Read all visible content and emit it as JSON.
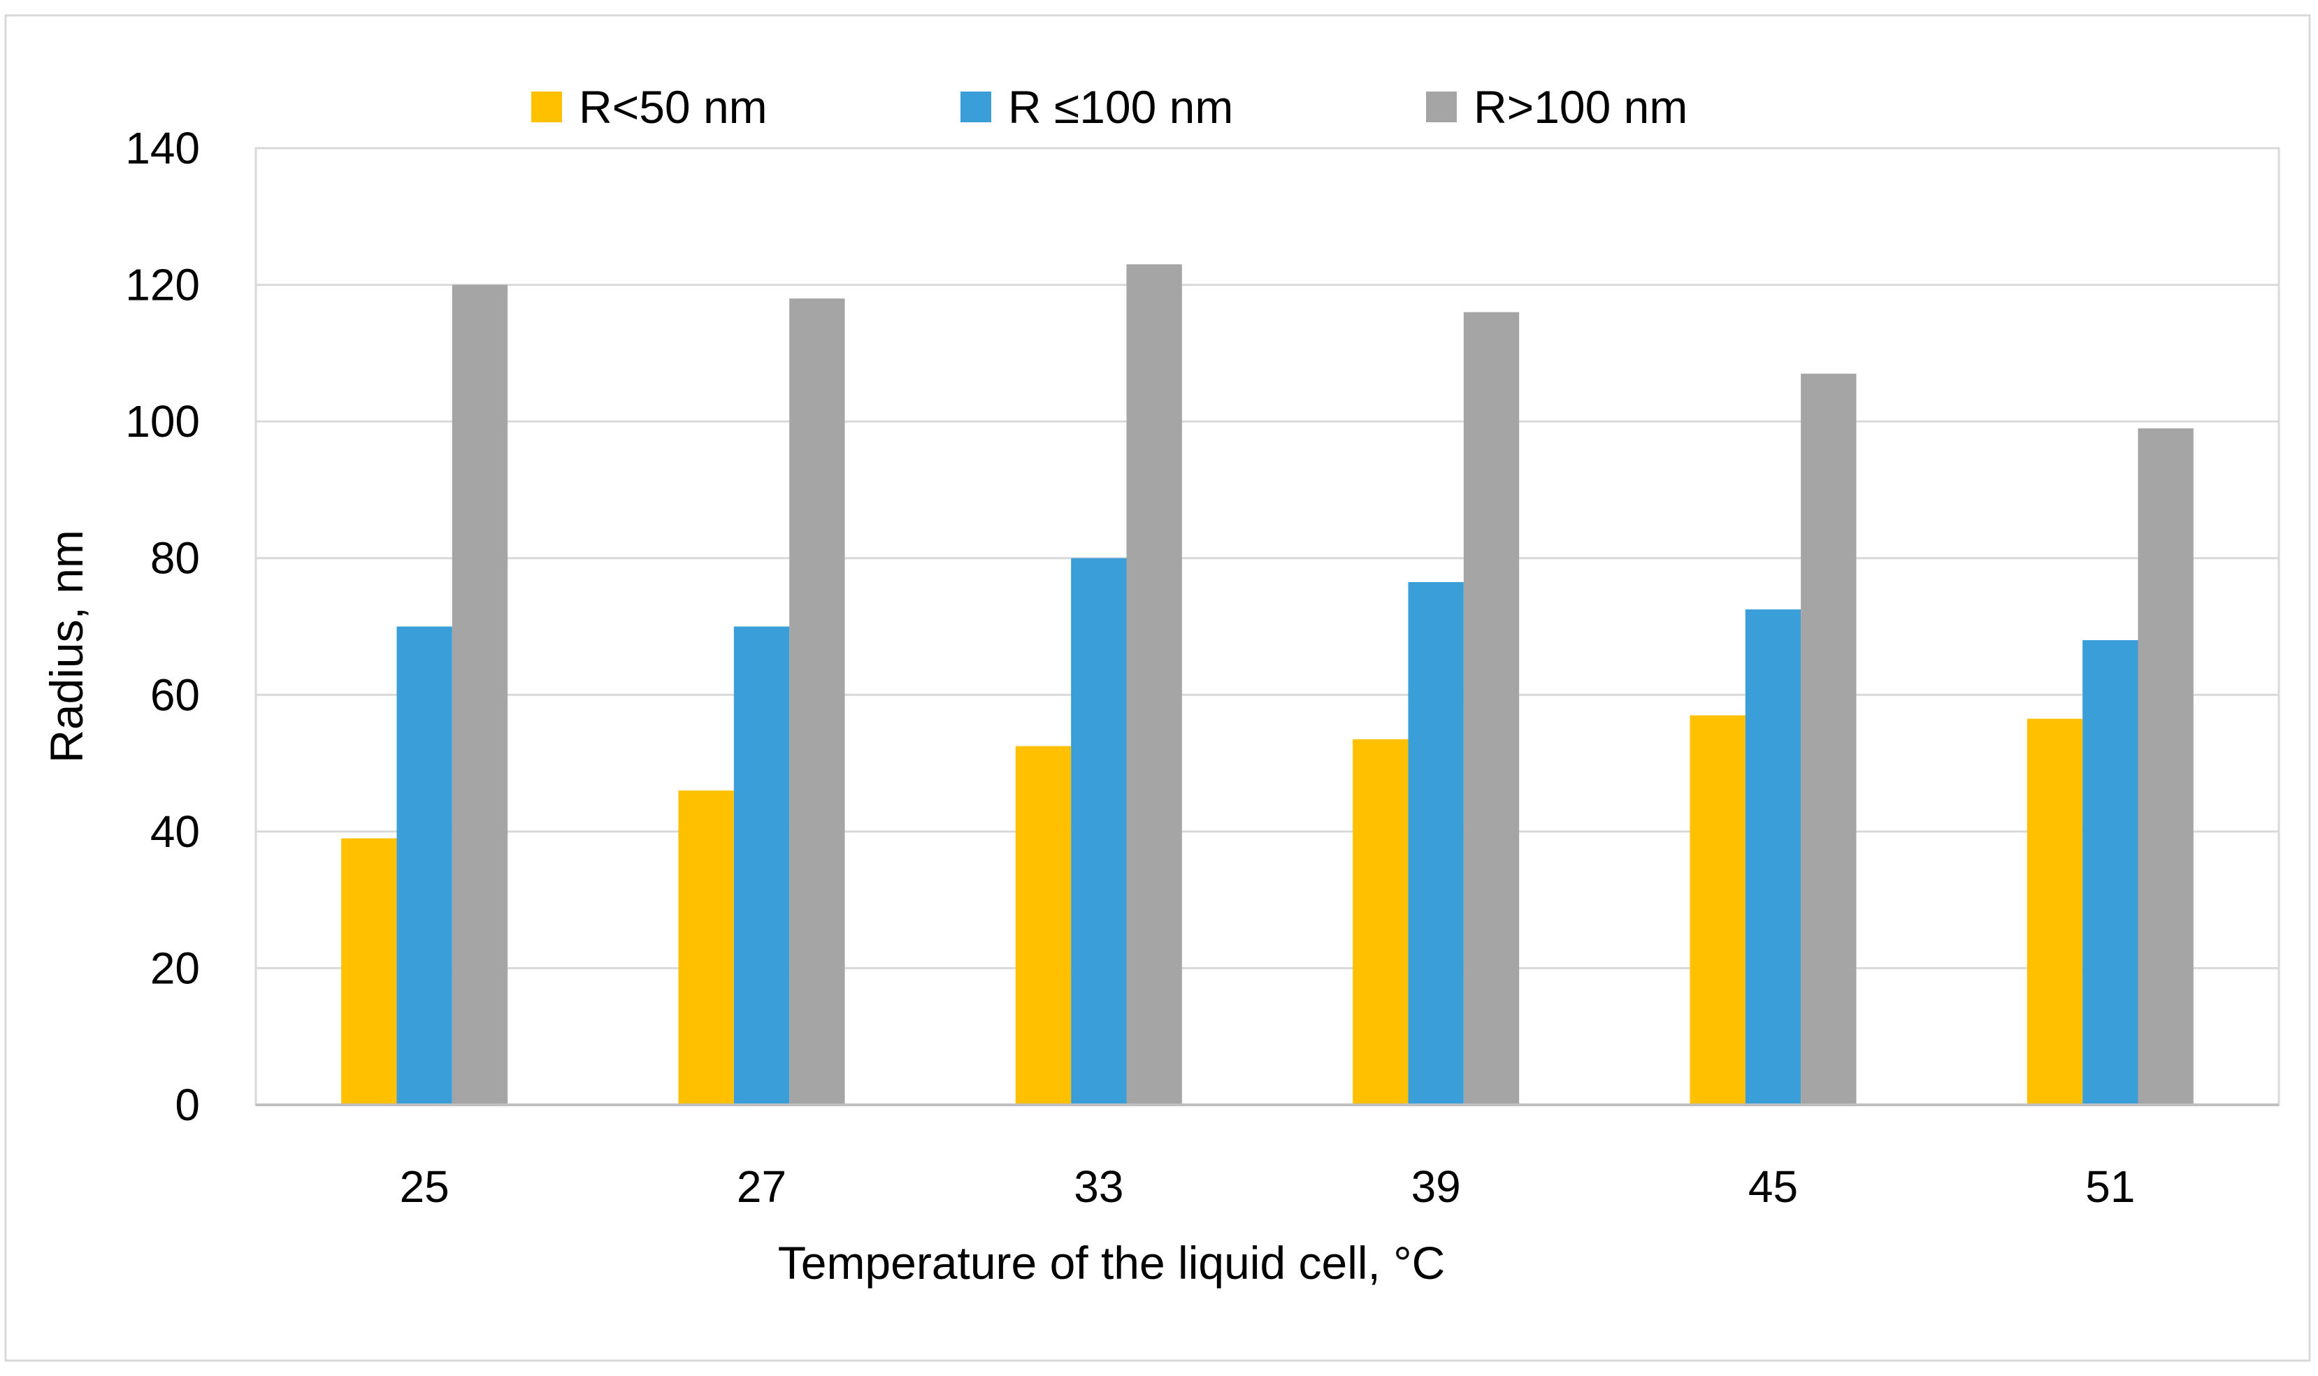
{
  "chart_data": {
    "type": "bar",
    "title": "",
    "xlabel": "Temperature of the liquid cell, °C",
    "ylabel": "Radius, nm",
    "categories": [
      "25",
      "27",
      "33",
      "39",
      "45",
      "51"
    ],
    "ylim": [
      0,
      140
    ],
    "yticks": [
      0,
      20,
      40,
      60,
      80,
      100,
      120,
      140
    ],
    "grid": true,
    "legend_position": "top",
    "series": [
      {
        "name": "R<50 nm",
        "color": "#FFC000",
        "values": [
          39,
          46,
          52.5,
          53.5,
          57,
          56.5
        ]
      },
      {
        "name": "R ≤100 nm",
        "color": "#3A9FD8",
        "values": [
          70,
          70,
          80,
          76.5,
          72.5,
          68
        ]
      },
      {
        "name": "R>100 nm",
        "color": "#A5A5A5",
        "values": [
          120,
          118,
          123,
          116,
          107,
          99
        ]
      }
    ]
  }
}
